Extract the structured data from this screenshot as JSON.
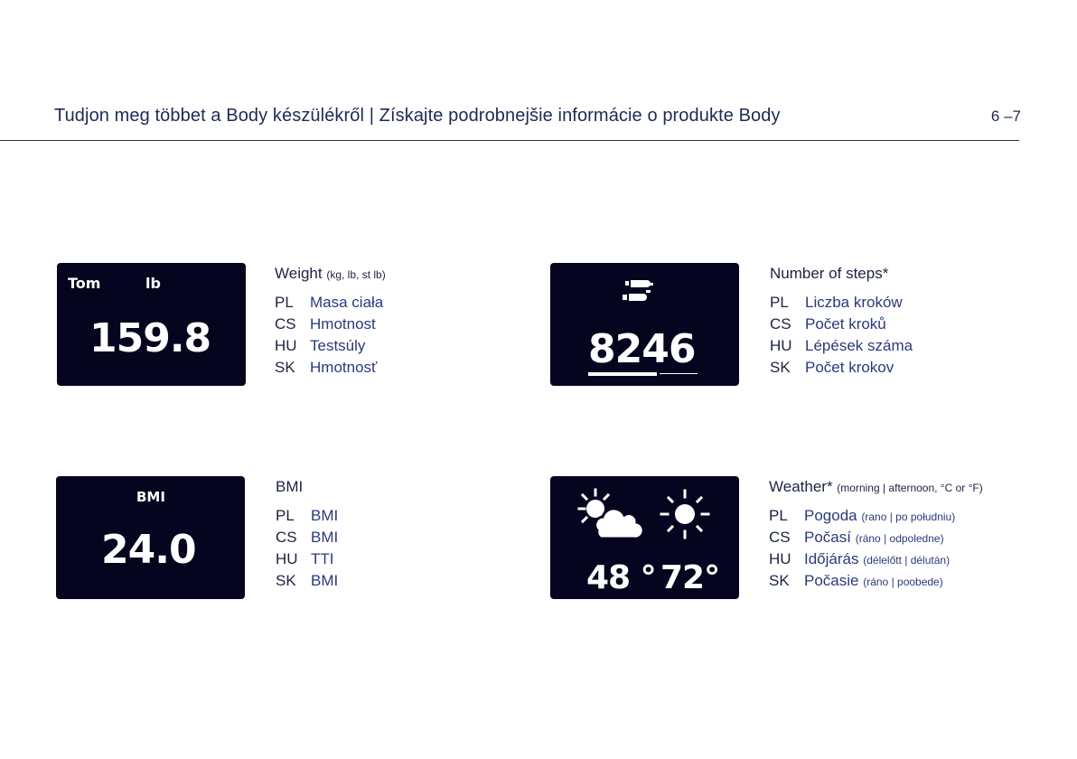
{
  "header": {
    "title": "Tudjon meg többet a Body készülékről | Získajte podrobnejšie informácie o produkte Body",
    "page": "6 –7"
  },
  "weight": {
    "screen": {
      "name": "Tom",
      "unit": "lb",
      "value": "159.8"
    },
    "title": "Weight",
    "subtitle": "(kg, lb, st lb)",
    "rows": [
      {
        "code": "PL",
        "text": "Masa ciała"
      },
      {
        "code": "CS",
        "text": "Hmotnost"
      },
      {
        "code": "HU",
        "text": "Testsúly"
      },
      {
        "code": "SK",
        "text": "Hmotnosť"
      }
    ]
  },
  "steps": {
    "screen": {
      "value": "8246",
      "icon": "footprints-icon"
    },
    "title": "Number of steps*",
    "rows": [
      {
        "code": "PL",
        "text": "Liczba kroków"
      },
      {
        "code": "CS",
        "text": "Počet kroků"
      },
      {
        "code": "HU",
        "text": "Lépések száma"
      },
      {
        "code": "SK",
        "text": "Počet krokov"
      }
    ]
  },
  "bmi": {
    "screen": {
      "label": "BMI",
      "value": "24.0"
    },
    "title": "BMI",
    "rows": [
      {
        "code": "PL",
        "text": "BMI"
      },
      {
        "code": "CS",
        "text": "BMI"
      },
      {
        "code": "HU",
        "text": "TTI"
      },
      {
        "code": "SK",
        "text": "BMI"
      }
    ]
  },
  "weather": {
    "screen": {
      "morning_temp": "48 °",
      "afternoon_temp": "72°",
      "morning_icon": "partly-cloudy-icon",
      "afternoon_icon": "sun-icon"
    },
    "title": "Weather*",
    "subtitle": "(morning | afternoon, °C or °F)",
    "rows": [
      {
        "code": "PL",
        "text": "Pogoda",
        "note": "(rano | po południu)"
      },
      {
        "code": "CS",
        "text": "Počasí",
        "note": "(ráno | odpoledne)"
      },
      {
        "code": "HU",
        "text": "Időjárás",
        "note": "(délelőtt | délután)"
      },
      {
        "code": "SK",
        "text": "Počasie",
        "note": "(ráno | poobede)"
      }
    ]
  },
  "colors": {
    "screen_bg": "#05051f",
    "text": "#1c2340",
    "accent_text": "#2a3a7a"
  }
}
